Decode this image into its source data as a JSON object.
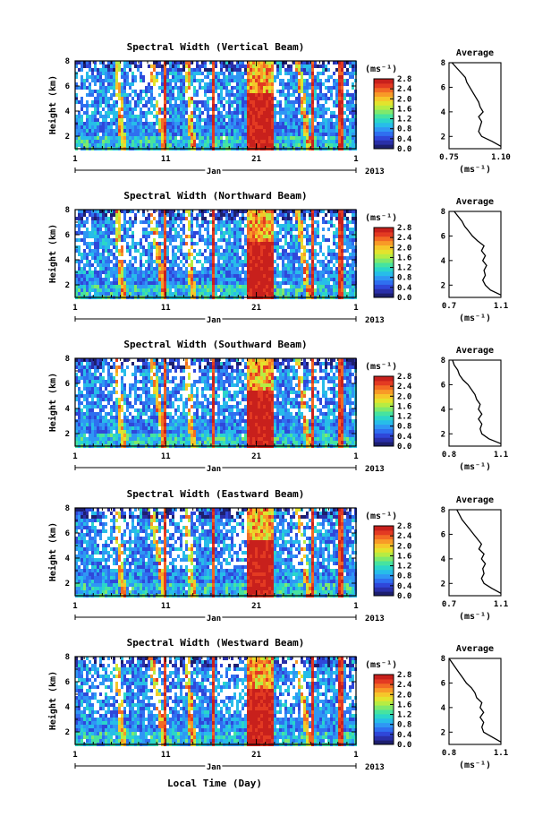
{
  "figure": {
    "x_axis_title": "Local Time (Day)",
    "month_label": "Jan",
    "year_label": "2013"
  },
  "colorbar": {
    "unit": "(ms⁻¹)",
    "vmin": 0.0,
    "vmax": 2.8,
    "colors": [
      "#1d1f6e",
      "#2a2fa8",
      "#2f47d9",
      "#2f6ff0",
      "#2f97f4",
      "#27bde9",
      "#2bd6c9",
      "#46e3a0",
      "#7fe96c",
      "#b6ec43",
      "#e3e32d",
      "#f6c62a",
      "#f89a27",
      "#f26a24",
      "#e33a22",
      "#c8201c"
    ]
  },
  "chart_data": [
    {
      "type": "heatmap",
      "title": "Spectral Width (Vertical Beam)",
      "ylabel": "Height (km)",
      "xlim": [
        1,
        32
      ],
      "ylim": [
        1.0,
        8.0
      ],
      "x_tick_labels": [
        "1",
        "11",
        "21",
        "1"
      ],
      "y_tick_labels": [
        "2",
        "4",
        "6",
        "8"
      ],
      "colorbar_tick_labels": [
        "0.0",
        "0.4",
        "0.8",
        "1.2",
        "1.6",
        "2.0",
        "2.4",
        "2.8"
      ],
      "profile": {
        "title": "Average",
        "xlabel": "(ms⁻¹)",
        "xlim": [
          0.75,
          1.1
        ],
        "x_tick_labels": [
          "0.75",
          "1.10"
        ],
        "y_tick_labels": [
          "2",
          "4",
          "6",
          "8"
        ],
        "heights": [
          1.2,
          1.6,
          2.0,
          2.4,
          2.8,
          3.2,
          3.6,
          4.0,
          4.4,
          4.8,
          5.2,
          5.6,
          6.0,
          6.4,
          6.8,
          7.2,
          7.6,
          8.0
        ],
        "values": [
          1.1,
          1.04,
          0.97,
          0.95,
          0.96,
          0.97,
          0.95,
          0.98,
          0.96,
          0.95,
          0.93,
          0.91,
          0.89,
          0.87,
          0.86,
          0.83,
          0.8,
          0.77
        ]
      }
    },
    {
      "type": "heatmap",
      "title": "Spectral Width (Northward Beam)",
      "ylabel": "Height (km)",
      "xlim": [
        1,
        32
      ],
      "ylim": [
        1.0,
        8.0
      ],
      "x_tick_labels": [
        "1",
        "11",
        "21",
        "1"
      ],
      "y_tick_labels": [
        "2",
        "4",
        "6",
        "8"
      ],
      "colorbar_tick_labels": [
        "0.0",
        "0.4",
        "0.8",
        "1.2",
        "1.6",
        "2.0",
        "2.4",
        "2.8"
      ],
      "profile": {
        "title": "Average",
        "xlabel": "(ms⁻¹)",
        "xlim": [
          0.7,
          1.1
        ],
        "x_tick_labels": [
          "0.7",
          "1.1"
        ],
        "y_tick_labels": [
          "2",
          "4",
          "6",
          "8"
        ],
        "heights": [
          1.2,
          1.6,
          2.0,
          2.4,
          2.8,
          3.2,
          3.6,
          4.0,
          4.4,
          4.8,
          5.2,
          5.6,
          6.0,
          6.4,
          6.8,
          7.2,
          7.6,
          8.0
        ],
        "values": [
          1.1,
          1.02,
          0.98,
          0.96,
          0.98,
          0.97,
          0.99,
          0.96,
          0.98,
          0.95,
          0.97,
          0.92,
          0.88,
          0.85,
          0.82,
          0.8,
          0.77,
          0.74
        ]
      }
    },
    {
      "type": "heatmap",
      "title": "Spectral Width (Southward Beam)",
      "ylabel": "Height (km)",
      "xlim": [
        1,
        32
      ],
      "ylim": [
        1.0,
        8.0
      ],
      "x_tick_labels": [
        "1",
        "11",
        "21",
        "1"
      ],
      "y_tick_labels": [
        "2",
        "4",
        "6",
        "8"
      ],
      "colorbar_tick_labels": [
        "0.0",
        "0.4",
        "0.8",
        "1.2",
        "1.6",
        "2.0",
        "2.4",
        "2.8"
      ],
      "profile": {
        "title": "Average",
        "xlabel": "(ms⁻¹)",
        "xlim": [
          0.8,
          1.1
        ],
        "x_tick_labels": [
          "0.8",
          "1.1"
        ],
        "y_tick_labels": [
          "2",
          "4",
          "6",
          "8"
        ],
        "heights": [
          1.2,
          1.6,
          2.0,
          2.4,
          2.8,
          3.2,
          3.6,
          4.0,
          4.4,
          4.8,
          5.2,
          5.6,
          6.0,
          6.4,
          6.8,
          7.2,
          7.6,
          8.0
        ],
        "values": [
          1.1,
          1.03,
          0.99,
          0.98,
          0.99,
          0.97,
          0.99,
          0.97,
          0.98,
          0.96,
          0.95,
          0.93,
          0.91,
          0.88,
          0.86,
          0.85,
          0.83,
          0.82
        ]
      }
    },
    {
      "type": "heatmap",
      "title": "Spectral Width (Eastward Beam)",
      "ylabel": "Height (km)",
      "xlim": [
        1,
        32
      ],
      "ylim": [
        1.0,
        8.0
      ],
      "x_tick_labels": [
        "1",
        "11",
        "21",
        "1"
      ],
      "y_tick_labels": [
        "2",
        "4",
        "6",
        "8"
      ],
      "colorbar_tick_labels": [
        "0.0",
        "0.4",
        "0.8",
        "1.2",
        "1.6",
        "2.0",
        "2.4",
        "2.8"
      ],
      "profile": {
        "title": "Average",
        "xlabel": "(ms⁻¹)",
        "xlim": [
          0.7,
          1.1
        ],
        "x_tick_labels": [
          "0.7",
          "1.1"
        ],
        "y_tick_labels": [
          "2",
          "4",
          "6",
          "8"
        ],
        "heights": [
          1.2,
          1.6,
          2.0,
          2.4,
          2.8,
          3.2,
          3.6,
          4.0,
          4.4,
          4.8,
          5.2,
          5.6,
          6.0,
          6.4,
          6.8,
          7.2,
          7.6,
          8.0
        ],
        "values": [
          1.1,
          1.03,
          0.97,
          0.95,
          0.97,
          0.96,
          0.98,
          0.95,
          0.97,
          0.93,
          0.95,
          0.92,
          0.89,
          0.86,
          0.83,
          0.8,
          0.78,
          0.76
        ]
      }
    },
    {
      "type": "heatmap",
      "title": "Spectral Width (Westward Beam)",
      "ylabel": "Height (km)",
      "xlim": [
        1,
        32
      ],
      "ylim": [
        1.0,
        8.0
      ],
      "x_tick_labels": [
        "1",
        "11",
        "21",
        "1"
      ],
      "y_tick_labels": [
        "2",
        "4",
        "6",
        "8"
      ],
      "colorbar_tick_labels": [
        "0.0",
        "0.4",
        "0.8",
        "1.2",
        "1.6",
        "2.0",
        "2.4",
        "2.8"
      ],
      "profile": {
        "title": "Average",
        "xlabel": "(ms⁻¹)",
        "xlim": [
          0.8,
          1.1
        ],
        "x_tick_labels": [
          "0.8",
          "1.1"
        ],
        "y_tick_labels": [
          "2",
          "4",
          "6",
          "8"
        ],
        "heights": [
          1.2,
          1.6,
          2.0,
          2.4,
          2.8,
          3.2,
          3.6,
          4.0,
          4.4,
          4.8,
          5.2,
          5.6,
          6.0,
          6.4,
          6.8,
          7.2,
          7.6,
          8.0
        ],
        "values": [
          1.1,
          1.05,
          1.0,
          0.99,
          1.0,
          0.98,
          1.0,
          0.98,
          0.99,
          0.96,
          0.95,
          0.93,
          0.9,
          0.88,
          0.86,
          0.84,
          0.82,
          0.8
        ]
      }
    }
  ]
}
